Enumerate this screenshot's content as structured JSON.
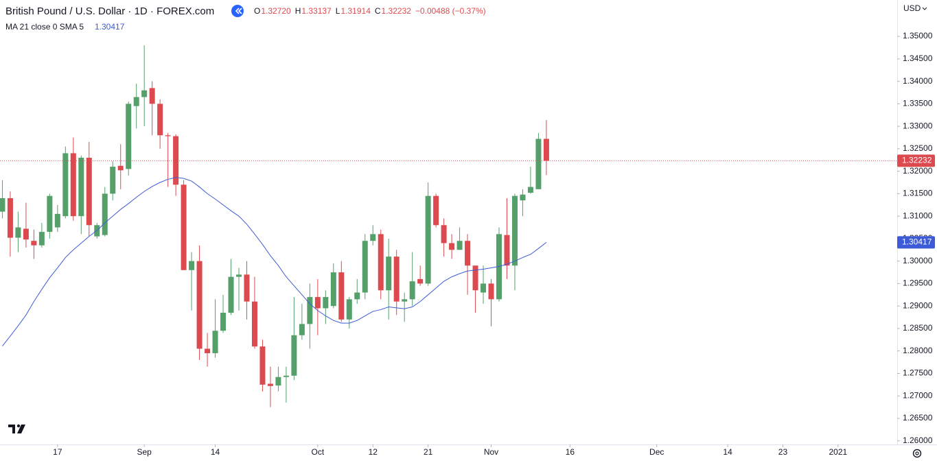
{
  "chart_data": {
    "type": "candlestick",
    "title": "British Pound / U.S. Dollar · 1D · FOREX.com",
    "ohlc_header": [
      {
        "key": "O",
        "label": "1.32720"
      },
      {
        "key": "H",
        "label": "1.33137"
      },
      {
        "key": "L",
        "label": "1.31914"
      },
      {
        "key": "C",
        "label": "1.32232"
      }
    ],
    "change": "−0.00488 (−0.37%)",
    "currency": "USD",
    "up_color": "#55a06a",
    "down_color": "#dc4a4f",
    "open": [
      1.311,
      1.314,
      1.3052,
      1.3072,
      1.3045,
      1.3035,
      1.3065,
      1.3075,
      1.31,
      1.324,
      1.31,
      1.323,
      1.3055,
      1.3058,
      1.315,
      1.3212,
      1.3205,
      1.3345,
      1.3365,
      1.3385,
      1.335,
      1.328,
      1.3278,
      1.317,
      1.298,
      1.3,
      1.2805,
      1.2795,
      1.2845,
      1.2885,
      1.2965,
      1.297,
      1.291,
      1.281,
      1.2727,
      1.2723,
      1.2742,
      1.2745,
      1.2835,
      1.286,
      1.292,
      1.2895,
      1.29,
      1.2975,
      1.287,
      1.2915,
      1.293,
      1.3045,
      1.306,
      1.2935,
      1.301,
      1.291,
      1.2915,
      1.296,
      1.295,
      1.3145,
      1.308,
      1.304,
      1.3025,
      1.3045,
      1.299,
      1.293,
      1.295,
      1.2915,
      1.3058,
      1.299,
      1.3135,
      1.3152,
      1.316,
      1.3272
    ],
    "high": [
      1.318,
      1.3155,
      1.311,
      1.313,
      1.307,
      1.3085,
      1.315,
      1.3125,
      1.3255,
      1.3275,
      1.3235,
      1.3265,
      1.3085,
      1.3165,
      1.3222,
      1.326,
      1.3355,
      1.3395,
      1.348,
      1.34,
      1.336,
      1.3285,
      1.3282,
      1.318,
      1.302,
      1.3035,
      1.284,
      1.2915,
      1.2925,
      1.3005,
      1.2985,
      1.3,
      1.2965,
      1.2825,
      1.2765,
      1.2765,
      1.2765,
      1.292,
      1.2905,
      1.295,
      1.296,
      1.2935,
      1.2995,
      1.3,
      1.292,
      1.296,
      1.306,
      1.308,
      1.307,
      1.305,
      1.3025,
      1.293,
      1.302,
      1.299,
      1.3175,
      1.315,
      1.3095,
      1.306,
      1.3075,
      1.306,
      1.299,
      1.299,
      1.296,
      1.3075,
      1.314,
      1.315,
      1.316,
      1.321,
      1.3285,
      1.33137
    ],
    "low": [
      1.3095,
      1.301,
      1.302,
      1.303,
      1.3005,
      1.303,
      1.305,
      1.3065,
      1.3095,
      1.309,
      1.306,
      1.3055,
      1.305,
      1.3055,
      1.3135,
      1.316,
      1.319,
      1.3295,
      1.33,
      1.328,
      1.325,
      1.3165,
      1.3145,
      1.298,
      1.289,
      1.278,
      1.2765,
      1.2785,
      1.284,
      1.288,
      1.289,
      1.287,
      1.2805,
      1.271,
      1.2675,
      1.271,
      1.2685,
      1.2735,
      1.2825,
      1.2805,
      1.2835,
      1.286,
      1.2895,
      1.2865,
      1.285,
      1.2905,
      1.2915,
      1.3035,
      1.2915,
      1.287,
      1.288,
      1.2865,
      1.29,
      1.2945,
      1.2945,
      1.3075,
      1.301,
      1.3005,
      1.3025,
      1.2925,
      1.2885,
      1.2905,
      1.2855,
      1.291,
      1.296,
      1.2935,
      1.31,
      1.315,
      1.316,
      1.31914
    ],
    "close": [
      1.314,
      1.3052,
      1.3075,
      1.3048,
      1.3035,
      1.3065,
      1.3145,
      1.3105,
      1.324,
      1.31,
      1.323,
      1.308,
      1.308,
      1.315,
      1.321,
      1.3202,
      1.335,
      1.3365,
      1.338,
      1.335,
      1.328,
      1.3278,
      1.317,
      1.298,
      1.3,
      1.2805,
      1.2795,
      1.2845,
      1.2885,
      1.2965,
      1.297,
      1.291,
      1.281,
      1.2725,
      1.2722,
      1.2742,
      1.2745,
      1.2835,
      1.286,
      1.292,
      1.2895,
      1.292,
      1.2975,
      1.287,
      1.2915,
      1.293,
      1.3045,
      1.306,
      1.2935,
      1.301,
      1.291,
      1.2915,
      1.2955,
      1.295,
      1.3145,
      1.308,
      1.304,
      1.3025,
      1.3045,
      1.299,
      1.2935,
      1.295,
      1.2915,
      1.306,
      1.299,
      1.3145,
      1.3148,
      1.3165,
      1.3272,
      1.32232
    ],
    "ma": {
      "name": "MA 21 close 0 SMA 5",
      "color": "#3d5bd6",
      "values": [
        1.2811,
        1.2833,
        1.2856,
        1.288,
        1.291,
        1.2937,
        1.2963,
        1.2985,
        1.3008,
        1.3025,
        1.304,
        1.3055,
        1.3068,
        1.3085,
        1.31,
        1.3115,
        1.3128,
        1.3142,
        1.3155,
        1.3166,
        1.3175,
        1.3182,
        1.3186,
        1.3184,
        1.3178,
        1.3165,
        1.315,
        1.3138,
        1.3125,
        1.3112,
        1.31,
        1.3082,
        1.306,
        1.3037,
        1.3012,
        1.299,
        1.2965,
        1.2945,
        1.2925,
        1.2905,
        1.289,
        1.2878,
        1.2868,
        1.2862,
        1.2862,
        1.2868,
        1.2878,
        1.2888,
        1.2892,
        1.2898,
        1.2896,
        1.2894,
        1.2898,
        1.291,
        1.2925,
        1.294,
        1.2955,
        1.2965,
        1.2972,
        1.2978,
        1.298,
        1.2982,
        1.2985,
        1.2988,
        1.2993,
        1.3,
        1.3008,
        1.3015,
        1.3028,
        1.30417
      ],
      "last": {
        "value": 1.30417,
        "label": "1.30417"
      }
    },
    "last_price": {
      "value": 1.32232,
      "label": "1.32232"
    },
    "ylim": [
      1.2592,
      1.3581
    ],
    "yticks": [
      {
        "value": 1.26,
        "label": "1.26000"
      },
      {
        "value": 1.265,
        "label": "1.26500"
      },
      {
        "value": 1.27,
        "label": "1.27000"
      },
      {
        "value": 1.275,
        "label": "1.27500"
      },
      {
        "value": 1.28,
        "label": "1.28000"
      },
      {
        "value": 1.285,
        "label": "1.28500"
      },
      {
        "value": 1.29,
        "label": "1.29000"
      },
      {
        "value": 1.295,
        "label": "1.29500"
      },
      {
        "value": 1.3,
        "label": "1.30000"
      },
      {
        "value": 1.305,
        "label": "1.30500"
      },
      {
        "value": 1.31,
        "label": "1.31000"
      },
      {
        "value": 1.315,
        "label": "1.31500"
      },
      {
        "value": 1.32,
        "label": "1.32000"
      },
      {
        "value": 1.325,
        "label": "1.32500"
      },
      {
        "value": 1.33,
        "label": "1.33000"
      },
      {
        "value": 1.335,
        "label": "1.33500"
      },
      {
        "value": 1.34,
        "label": "1.34000"
      },
      {
        "value": 1.345,
        "label": "1.34500"
      },
      {
        "value": 1.35,
        "label": "1.35000"
      }
    ],
    "xlim": [
      -0.3,
      113.5
    ],
    "xticks": [
      {
        "value": 7,
        "label": "17"
      },
      {
        "value": 18,
        "label": "Sep"
      },
      {
        "value": 27,
        "label": "14"
      },
      {
        "value": 40,
        "label": "Oct"
      },
      {
        "value": 47,
        "label": "12"
      },
      {
        "value": 54,
        "label": "21"
      },
      {
        "value": 62,
        "label": "Nov"
      },
      {
        "value": 72,
        "label": "16"
      },
      {
        "value": 83,
        "label": "Dec"
      },
      {
        "value": 92,
        "label": "14"
      },
      {
        "value": 99,
        "label": "23"
      },
      {
        "value": 106,
        "label": "2021"
      }
    ]
  }
}
